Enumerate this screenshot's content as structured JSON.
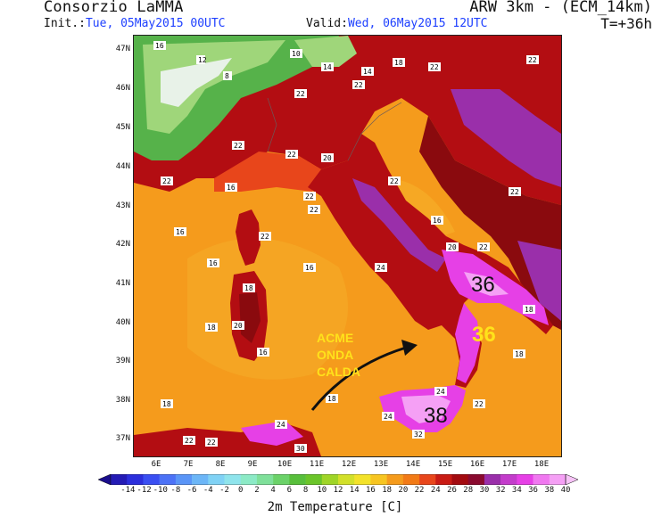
{
  "header": {
    "org": "Consorzio LaMMA",
    "model": "ARW 3km - (ECM_14km)",
    "init_label": "Init.:",
    "init_value": "Tue, 05May2015 00UTC",
    "valid_label": "Valid:",
    "valid_value": "Wed, 06May2015 12UTC",
    "lead_time": "T=+36h"
  },
  "map": {
    "lat_labels": [
      "47N",
      "46N",
      "45N",
      "44N",
      "43N",
      "42N",
      "41N",
      "40N",
      "39N",
      "38N",
      "37N"
    ],
    "lon_labels": [
      "6E",
      "7E",
      "8E",
      "9E",
      "10E",
      "11E",
      "12E",
      "13E",
      "14E",
      "15E",
      "16E",
      "17E",
      "18E"
    ],
    "annotations": {
      "acme_line1": "ACME",
      "acme_line2": "ONDA",
      "acme_line3": "CALDA",
      "peak_apulia": "36",
      "peak_calabria": "36",
      "peak_sicily": "38"
    },
    "colors": {
      "sea_orange": "#f59b1c",
      "sea_light_orange": "#f6b02a",
      "land_red": "#b30d12",
      "land_dark_red": "#8a0a0e",
      "land_orange_red": "#e8461b",
      "land_purple": "#9a2faa",
      "land_magenta": "#e640e6",
      "land_pink": "#f5a0f5",
      "alps_green": "#56b24a",
      "alps_light_green": "#9fd67a",
      "alps_white": "#e8f2e8",
      "label_box": "#ffffff"
    }
  },
  "colorbar": {
    "title": "2m Temperature [C]",
    "labels": [
      "-14",
      "-12",
      "-10",
      "-8",
      "-6",
      "-4",
      "-2",
      "0",
      "2",
      "4",
      "6",
      "8",
      "10",
      "12",
      "14",
      "16",
      "18",
      "20",
      "22",
      "24",
      "26",
      "28",
      "30",
      "32",
      "34",
      "36",
      "38",
      "40"
    ],
    "colors": [
      "#1a0e8c",
      "#241bb5",
      "#2c2fdc",
      "#3a4ff2",
      "#4c72f6",
      "#5a95f7",
      "#6cb6f7",
      "#80d2f5",
      "#8fe4ec",
      "#8ceac6",
      "#7fe09a",
      "#6bd269",
      "#58bf3c",
      "#6bc52a",
      "#9fd527",
      "#d2e02a",
      "#f3e22a",
      "#f7c521",
      "#f59b1c",
      "#f27a16",
      "#e8461b",
      "#c91b14",
      "#a30b10",
      "#8a0a2f",
      "#9a2faa",
      "#c33ccb",
      "#e640e6",
      "#f078f0",
      "#f5a0f5",
      "#f7c3f7"
    ]
  }
}
